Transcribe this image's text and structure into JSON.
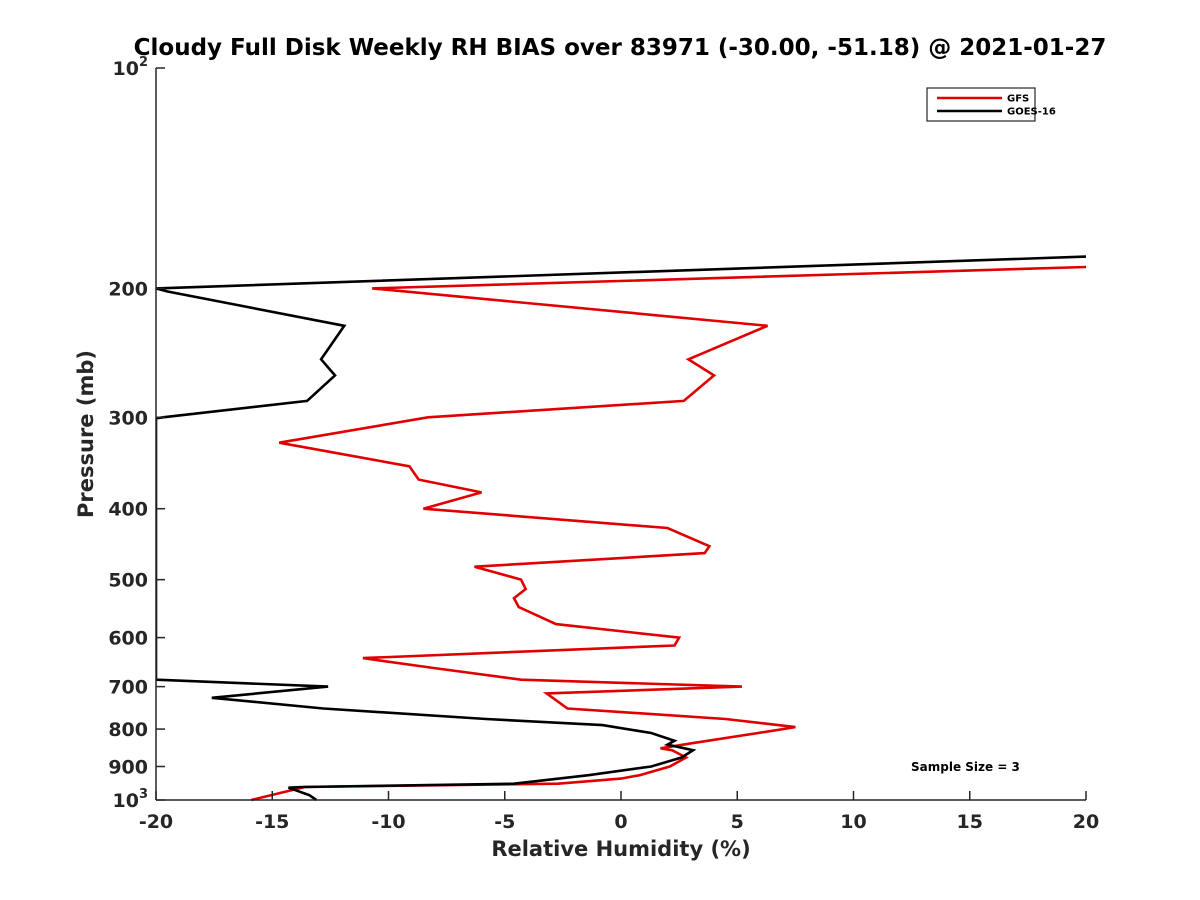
{
  "chart_data": {
    "type": "line",
    "title": "Cloudy Full Disk Weekly RH BIAS over 83971 (-30.00, -51.18) @ 2021-01-27",
    "xlabel": "Relative Humidity (%)",
    "ylabel": "Pressure (mb)",
    "xlim": [
      -20,
      20
    ],
    "ylim": [
      100,
      1000
    ],
    "yscale": "log",
    "yreversed": true,
    "x_ticks": [
      "-20",
      "-15",
      "-10",
      "-5",
      "0",
      "5",
      "10",
      "15",
      "20"
    ],
    "y_ticks": [
      {
        "value": 100,
        "base": "10",
        "exp": "2"
      },
      {
        "value": 200,
        "label": "200"
      },
      {
        "value": 300,
        "label": "300"
      },
      {
        "value": 400,
        "label": "400"
      },
      {
        "value": 500,
        "label": "500"
      },
      {
        "value": 600,
        "label": "600"
      },
      {
        "value": 700,
        "label": "700"
      },
      {
        "value": 800,
        "label": "800"
      },
      {
        "value": 900,
        "label": "900"
      },
      {
        "value": 1000,
        "base": "10",
        "exp": "3"
      }
    ],
    "legend_position": "top-right",
    "annotation": "Sample Size = 3",
    "series": [
      {
        "name": "GFS",
        "color": "#e00000",
        "points": [
          {
            "x": 20,
            "y": 187
          },
          {
            "x": -10.7,
            "y": 200
          },
          {
            "x": 6.3,
            "y": 225
          },
          {
            "x": 2.9,
            "y": 250
          },
          {
            "x": 4.0,
            "y": 263
          },
          {
            "x": 2.7,
            "y": 285
          },
          {
            "x": -8.3,
            "y": 300
          },
          {
            "x": -14.7,
            "y": 325
          },
          {
            "x": -9.1,
            "y": 350
          },
          {
            "x": -8.7,
            "y": 365
          },
          {
            "x": -6.0,
            "y": 380
          },
          {
            "x": -8.5,
            "y": 400
          },
          {
            "x": 2.0,
            "y": 425
          },
          {
            "x": 3.8,
            "y": 450
          },
          {
            "x": 3.6,
            "y": 460
          },
          {
            "x": -6.3,
            "y": 480
          },
          {
            "x": -4.3,
            "y": 500
          },
          {
            "x": -4.1,
            "y": 515
          },
          {
            "x": -4.6,
            "y": 530
          },
          {
            "x": -4.4,
            "y": 545
          },
          {
            "x": -2.8,
            "y": 575
          },
          {
            "x": 2.5,
            "y": 600
          },
          {
            "x": 2.3,
            "y": 615
          },
          {
            "x": -11.1,
            "y": 640
          },
          {
            "x": -8.1,
            "y": 660
          },
          {
            "x": -4.3,
            "y": 685
          },
          {
            "x": 5.2,
            "y": 700
          },
          {
            "x": -3.2,
            "y": 715
          },
          {
            "x": -2.3,
            "y": 750
          },
          {
            "x": 4.5,
            "y": 775
          },
          {
            "x": 7.5,
            "y": 795
          },
          {
            "x": 5.9,
            "y": 810
          },
          {
            "x": 3.2,
            "y": 835
          },
          {
            "x": 1.7,
            "y": 850
          },
          {
            "x": 2.2,
            "y": 855
          },
          {
            "x": 2.8,
            "y": 875
          },
          {
            "x": 2.1,
            "y": 900
          },
          {
            "x": 0.8,
            "y": 925
          },
          {
            "x": 0.0,
            "y": 935
          },
          {
            "x": -2.7,
            "y": 950
          },
          {
            "x": -13.6,
            "y": 960
          },
          {
            "x": -15.9,
            "y": 1000
          }
        ]
      },
      {
        "name": "GOES-16",
        "color": "#000000",
        "points": [
          {
            "x": 20,
            "y": 181
          },
          {
            "x": -20,
            "y": 200
          },
          {
            "x": -19.5,
            "y": 202
          },
          {
            "x": -11.9,
            "y": 225
          },
          {
            "x": -12.9,
            "y": 250
          },
          {
            "x": -12.3,
            "y": 263
          },
          {
            "x": -13.5,
            "y": 285
          },
          {
            "x": -19.7,
            "y": 300
          },
          {
            "x": -20,
            "y": 301
          },
          {
            "x": -20,
            "y": 685
          },
          {
            "x": -12.6,
            "y": 700
          },
          {
            "x": -17.6,
            "y": 725
          },
          {
            "x": -12.8,
            "y": 750
          },
          {
            "x": -5.8,
            "y": 775
          },
          {
            "x": -0.8,
            "y": 790
          },
          {
            "x": 1.3,
            "y": 810
          },
          {
            "x": 2.3,
            "y": 830
          },
          {
            "x": 2.0,
            "y": 840
          },
          {
            "x": 3.1,
            "y": 855
          },
          {
            "x": 2.6,
            "y": 875
          },
          {
            "x": 1.3,
            "y": 900
          },
          {
            "x": -1.4,
            "y": 925
          },
          {
            "x": -4.6,
            "y": 950
          },
          {
            "x": -13.7,
            "y": 960
          },
          {
            "x": -14.3,
            "y": 962
          },
          {
            "x": -13.4,
            "y": 985
          },
          {
            "x": -13.1,
            "y": 1000
          }
        ]
      }
    ]
  }
}
